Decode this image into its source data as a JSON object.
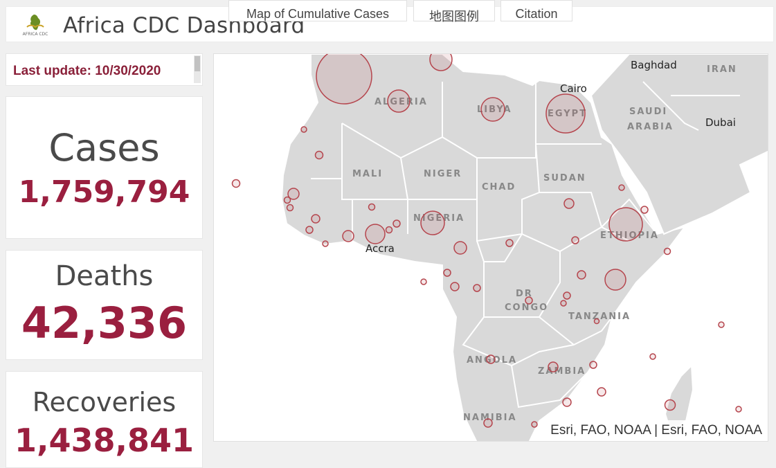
{
  "header": {
    "title": "Africa CDC Dashboard",
    "logo_text": "AFRICA CDC"
  },
  "update": {
    "text": "Last update: 10/30/2020"
  },
  "stats": {
    "cases": {
      "label": "Cases",
      "value": "1,759,794"
    },
    "deaths": {
      "label": "Deaths",
      "value": "42,336"
    },
    "recoveries": {
      "label": "Recoveries",
      "value": "1,438,841"
    }
  },
  "map": {
    "attribution": "Esri, FAO, NOAA | Esri, FAO, NOAA",
    "country_labels": [
      "ALGERIA",
      "LIBYA",
      "EGYPT",
      "SAUDI",
      "ARABIA",
      "IRAN",
      "MALI",
      "NIGER",
      "CHAD",
      "SUDAN",
      "NIGERIA",
      "ETHIOPIA",
      "DR",
      "CONGO",
      "TANZANIA",
      "ANGOLA",
      "ZAMBIA",
      "NAMIBIA"
    ],
    "city_labels": [
      "Baghdad",
      "Cairo",
      "Dubai",
      "Accra"
    ],
    "colors": {
      "land": "#d9d9d9",
      "border": "#ffffff",
      "bubble_stroke": "#b5454d",
      "bubble_fill": "rgba(181,69,77,0.12)"
    }
  },
  "tabs": [
    "Map of Cumulative Cases",
    "地图图例",
    "Citation"
  ]
}
